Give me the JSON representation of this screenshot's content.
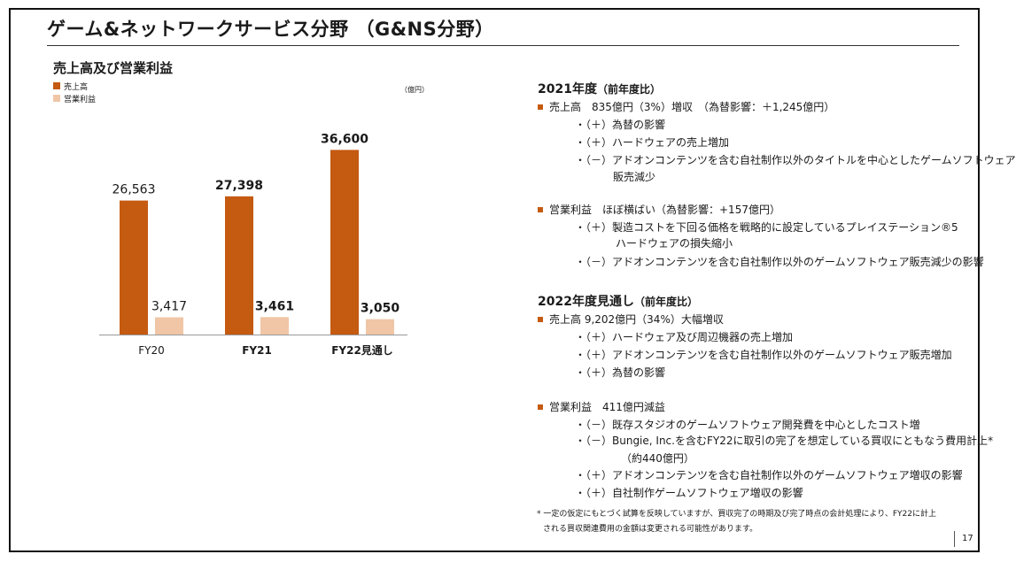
{
  "title": "ゲーム&ネットワークサービス分野 （G&NS分野）",
  "chart_section": {
    "subtitle": "売上高及び営業利益",
    "unit": "（億円）",
    "legend": [
      {
        "label": "売上高",
        "color": "#c55a11"
      },
      {
        "label": "営業利益",
        "color": "#f0c6a6"
      }
    ]
  },
  "chart_data": {
    "type": "bar",
    "title": "売上高及び営業利益",
    "categories": [
      "FY20",
      "FY21",
      "FY22見通し"
    ],
    "series": [
      {
        "name": "売上高",
        "values": [
          26563,
          27398,
          36600
        ],
        "labels": [
          "26,563",
          "27,398",
          "36,600"
        ],
        "color": "#c55a11"
      },
      {
        "name": "営業利益",
        "values": [
          3417,
          3461,
          3050
        ],
        "labels": [
          "3,417",
          "3,461",
          "3,050"
        ],
        "color": "#f0c6a6"
      }
    ],
    "ylim": [
      0,
      40000
    ],
    "unit": "億円",
    "bold_categories": [
      false,
      true,
      true
    ],
    "bold_labels": [
      false,
      true,
      true
    ]
  },
  "results_2021": {
    "heading": "2021年度",
    "heading_sub": "（前年度比）",
    "sales": {
      "summary": "売上高　835億円（3%）増収　（為替影響：＋1,245億円）",
      "items": [
        "・（＋）為替の影響",
        "・（＋）ハードウェアの売上増加",
        "・（－）アドオンコンテンツを含む自社制作以外のタイトルを中心としたゲームソフトウェア",
        "販売減少"
      ]
    },
    "operating_income": {
      "summary": "営業利益　ほぼ横ばい（為替影響：+157億円）",
      "items": [
        "・（＋）製造コストを下回る価格を戦略的に設定しているプレイステーション®5",
        "ハードウェアの損失縮小",
        "・（－）アドオンコンテンツを含む自社制作以外のゲームソフトウェア販売減少の影響"
      ]
    }
  },
  "forecast_2022": {
    "heading": "2022年度見通し",
    "heading_sub": "（前年度比）",
    "sales": {
      "summary": "売上高  9,202億円（34%）大幅増収",
      "items": [
        "・（＋）ハードウェア及び周辺機器の売上増加",
        "・（＋）アドオンコンテンツを含む自社制作以外のゲームソフトウェア販売増加",
        "・（＋）為替の影響"
      ]
    },
    "operating_income": {
      "summary": "営業利益　411億円減益",
      "items": [
        "・（－）既存スタジオのゲームソフトウェア開発費を中心としたコスト増",
        "・（－）Bungie, Inc.を含むFY22に取引の完了を想定している買収にともなう費用計上*",
        "（約440億円）",
        "・（＋）アドオンコンテンツを含む自社制作以外のゲームソフトウェア増収の影響",
        "・（＋）自社制作ゲームソフトウェア増収の影響"
      ]
    }
  },
  "footnote": [
    "* 一定の仮定にもとづく試算を反映していますが、買収完了の時期及び完了時点の会計処理により、FY22に計上",
    "される買収関連費用の金額は変更される可能性があります。"
  ],
  "page_number": "17"
}
